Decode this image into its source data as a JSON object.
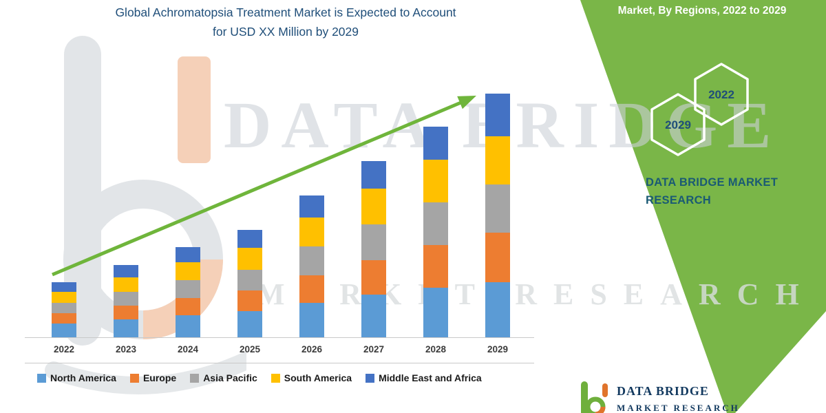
{
  "title": {
    "line1": "Global Achromatopsia Treatment Market is Expected to Account",
    "line2": "for USD XX Million by 2029"
  },
  "banner": {
    "heading": "Market, By Regions, 2022 to 2029",
    "hexagons": [
      {
        "label": "2029"
      },
      {
        "label": "2022"
      }
    ],
    "brand_line1": "DATA BRIDGE MARKET",
    "brand_line2": "RESEARCH"
  },
  "watermark": {
    "brand_text": "DATA BRIDGE",
    "sub_text": "MARKET RESEARCH"
  },
  "footer_logo": {
    "name": "DATA BRIDGE",
    "subname": "MARKET RESEARCH"
  },
  "colors": {
    "banner_green": "#7AB648",
    "arrow_green": "#6FB53B",
    "title_blue": "#1F4E79",
    "brand_green": "#6FAF3C",
    "brand_orange": "#E0742C"
  },
  "chart_data": {
    "type": "bar",
    "stacked": true,
    "title": "Global Achromatopsia Treatment Market is Expected to Account for USD XX Million by 2029",
    "categories": [
      "2022",
      "2023",
      "2024",
      "2025",
      "2026",
      "2027",
      "2028",
      "2029"
    ],
    "series": [
      {
        "name": "North America",
        "color": "#5B9BD5",
        "values": [
          20,
          26,
          32,
          38,
          50,
          62,
          72,
          80
        ]
      },
      {
        "name": "Europe",
        "color": "#ED7D31",
        "values": [
          15,
          20,
          25,
          30,
          40,
          50,
          62,
          72
        ]
      },
      {
        "name": "Asia Pacific",
        "color": "#A5A5A5",
        "values": [
          15,
          20,
          26,
          30,
          42,
          52,
          62,
          70
        ]
      },
      {
        "name": "South America",
        "color": "#FFC000",
        "values": [
          16,
          21,
          26,
          32,
          42,
          52,
          62,
          70
        ]
      },
      {
        "name": "Middle East and Africa",
        "color": "#4472C4",
        "values": [
          14,
          18,
          22,
          26,
          32,
          40,
          48,
          62
        ]
      }
    ],
    "value_axis": {
      "visible": false,
      "units": "relative (USD XX Million, values not disclosed)",
      "ylim": [
        0,
        380
      ]
    },
    "grid": false,
    "legend_position": "bottom",
    "trend_arrow": {
      "show": true
    }
  }
}
